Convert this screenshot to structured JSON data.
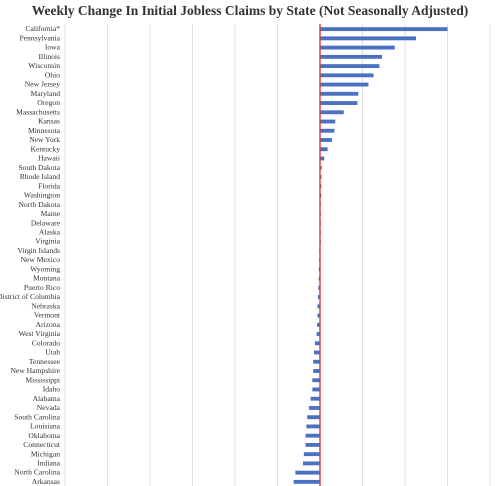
{
  "chart_data": {
    "type": "bar",
    "orientation": "horizontal",
    "title": "Weekly Change In Initial Jobless Claims by State (Not Seasonally Adjusted)",
    "xlabel": "",
    "ylabel": "",
    "grid": true,
    "legend": "none",
    "xlim": [
      -30000,
      20000
    ],
    "bar_color": "#4a72c0",
    "zero_line_color": "#d93a3a",
    "categories": [
      "California*",
      "Pennsylvania",
      "Iowa",
      "Illinois",
      "Wisconsin",
      "Ohio",
      "New Jersey",
      "Maryland",
      "Oregon",
      "Massachusetts",
      "Kansas",
      "Minnesota",
      "New York",
      "Kentucky",
      "Hawaii",
      "South Dakota",
      "Rhode Island",
      "Florida",
      "Washington",
      "North Dakota",
      "Maine",
      "Delaware",
      "Alaska",
      "Virginia",
      "Virgin Islands",
      "New Mexico",
      "Wyoming",
      "Montana",
      "Puerto Rico",
      "District of Columbia",
      "Nebraska",
      "Vermont",
      "Arizona",
      "West Virginia",
      "Colorado",
      "Utah",
      "Tennessee",
      "New Hampshire",
      "Mississippi",
      "Idaho",
      "Alabama",
      "Nevada",
      "South Carolina",
      "Louisiana",
      "Oklahoma",
      "Connecticut",
      "Michigan",
      "Indiana",
      "North Carolina",
      "Arkansas"
    ],
    "values": [
      15000,
      11300,
      8800,
      7300,
      7000,
      6300,
      5700,
      4500,
      4400,
      2800,
      1800,
      1700,
      1400,
      900,
      500,
      200,
      180,
      160,
      150,
      100,
      50,
      40,
      20,
      10,
      -50,
      -100,
      -150,
      -150,
      -200,
      -250,
      -300,
      -300,
      -350,
      -400,
      -600,
      -700,
      -800,
      -800,
      -900,
      -900,
      -1100,
      -1300,
      -1500,
      -1600,
      -1700,
      -1700,
      -1900,
      -2000,
      -2900,
      -3100
    ]
  }
}
